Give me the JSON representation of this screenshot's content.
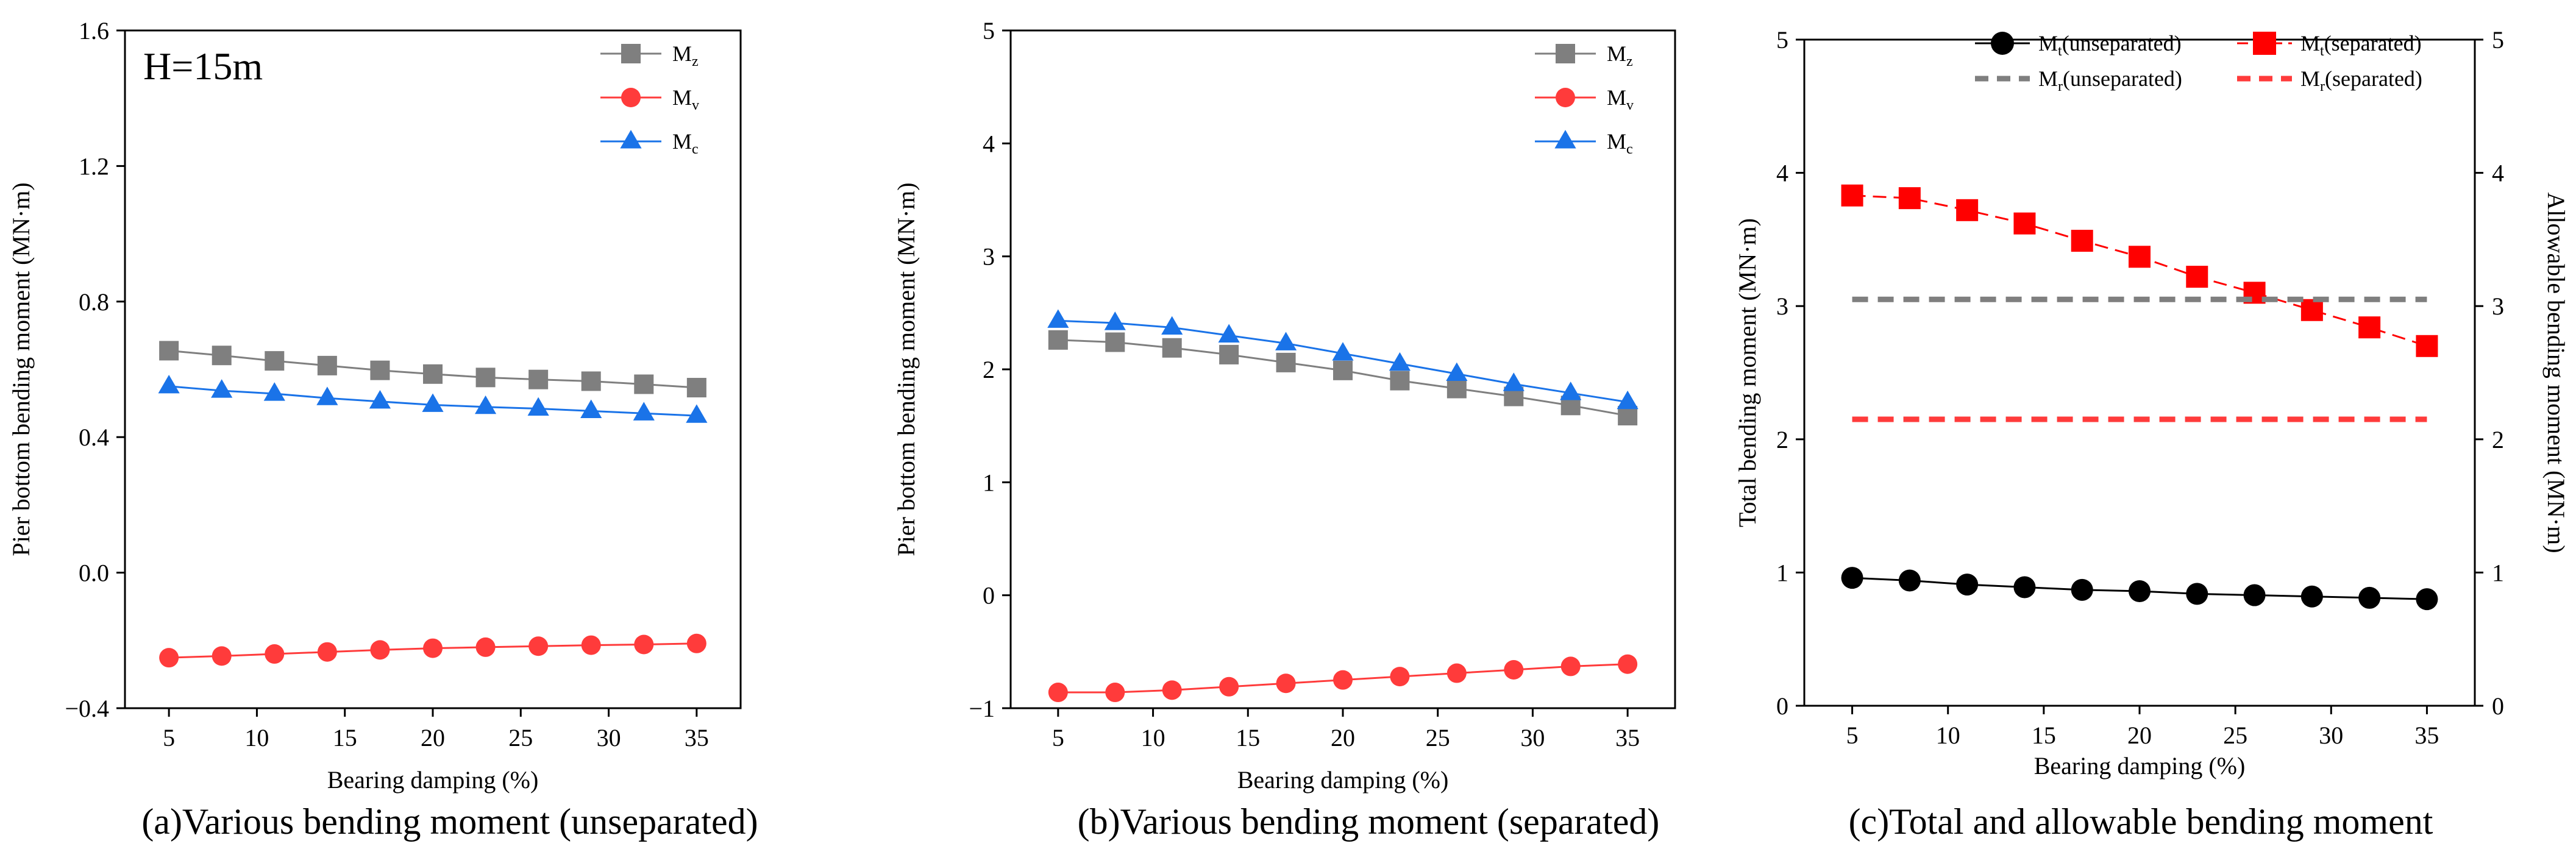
{
  "chart_data": [
    {
      "id": "a",
      "type": "line",
      "caption": "(a)Various bending moment (unseparated)",
      "annotation": "H=15m",
      "xlabel": "Bearing damping (%)",
      "ylabel": "Pier bottom bending moment (MN·m)",
      "xlim": [
        2.5,
        37.5
      ],
      "ylim": [
        -0.4,
        1.6
      ],
      "xticks": [
        5,
        10,
        15,
        20,
        25,
        30,
        35
      ],
      "yticks": [
        -0.4,
        0.0,
        0.4,
        0.8,
        1.2,
        1.6
      ],
      "ytick_labels": [
        "−0.4",
        "0.0",
        "0.4",
        "0.8",
        "1.2",
        "1.6"
      ],
      "x": [
        5,
        8,
        11,
        14,
        17,
        20,
        23,
        26,
        29,
        32,
        35
      ],
      "legend_position": "top-right",
      "series": [
        {
          "name": "M",
          "sub": "z",
          "color": "#7f7f7f",
          "marker": "square",
          "values": [
            0.655,
            0.641,
            0.625,
            0.611,
            0.597,
            0.586,
            0.576,
            0.57,
            0.565,
            0.556,
            0.546
          ]
        },
        {
          "name": "M",
          "sub": "v",
          "color": "#ff3b3b",
          "marker": "circle",
          "values": [
            -0.251,
            -0.246,
            -0.24,
            -0.234,
            -0.228,
            -0.223,
            -0.22,
            -0.217,
            -0.214,
            -0.212,
            -0.209
          ]
        },
        {
          "name": "M",
          "sub": "c",
          "color": "#1a73e8",
          "marker": "triangle",
          "values": [
            0.55,
            0.537,
            0.528,
            0.515,
            0.505,
            0.495,
            0.489,
            0.484,
            0.477,
            0.47,
            0.463
          ]
        }
      ]
    },
    {
      "id": "b",
      "type": "line",
      "caption": "(b)Various bending moment (separated)",
      "xlabel": "Bearing damping (%)",
      "ylabel": "Pier bottom bending moment (MN·m)",
      "xlim": [
        2.5,
        37.5
      ],
      "ylim": [
        -1,
        5
      ],
      "xticks": [
        5,
        10,
        15,
        20,
        25,
        30,
        35
      ],
      "yticks": [
        -1,
        0,
        1,
        2,
        3,
        4,
        5
      ],
      "ytick_labels": [
        "−1",
        "0",
        "1",
        "2",
        "3",
        "4",
        "5"
      ],
      "x": [
        5,
        8,
        11,
        14,
        17,
        20,
        23,
        26,
        29,
        32,
        35
      ],
      "legend_position": "top-right",
      "series": [
        {
          "name": "M",
          "sub": "z",
          "color": "#7f7f7f",
          "marker": "square",
          "values": [
            2.26,
            2.24,
            2.19,
            2.13,
            2.06,
            1.99,
            1.9,
            1.83,
            1.76,
            1.68,
            1.59
          ]
        },
        {
          "name": "M",
          "sub": "v",
          "color": "#ff3b3b",
          "marker": "circle",
          "values": [
            -0.86,
            -0.86,
            -0.84,
            -0.81,
            -0.78,
            -0.75,
            -0.72,
            -0.69,
            -0.66,
            -0.63,
            -0.61
          ]
        },
        {
          "name": "M",
          "sub": "c",
          "color": "#1a73e8",
          "marker": "triangle",
          "values": [
            2.43,
            2.41,
            2.37,
            2.3,
            2.23,
            2.14,
            2.05,
            1.96,
            1.87,
            1.79,
            1.71
          ]
        }
      ]
    },
    {
      "id": "c",
      "type": "line",
      "caption": "(c)Total and allowable bending moment",
      "xlabel": "Bearing damping (%)",
      "ylabel": "Total bending moment (MN·m)",
      "ylabel_right": "Allowable bending moment (MN·m)",
      "xlim": [
        2.5,
        37.5
      ],
      "ylim": [
        0,
        5
      ],
      "xticks": [
        5,
        10,
        15,
        20,
        25,
        30,
        35
      ],
      "yticks": [
        0,
        1,
        2,
        3,
        4,
        5
      ],
      "ytick_labels": [
        "0",
        "1",
        "2",
        "3",
        "4",
        "5"
      ],
      "x": [
        5,
        8,
        11,
        14,
        17,
        20,
        23,
        26,
        29,
        32,
        35
      ],
      "legend_position": "top",
      "series": [
        {
          "name": "M",
          "sub": "t",
          "suffix": "(unseparated)",
          "color": "#000000",
          "marker": "circle",
          "style": "solid",
          "values": [
            0.96,
            0.94,
            0.91,
            0.89,
            0.87,
            0.86,
            0.84,
            0.83,
            0.82,
            0.81,
            0.8
          ]
        },
        {
          "name": "M",
          "sub": "t",
          "suffix": "(separated)",
          "color": "#ff0000",
          "marker": "square",
          "style": "dash",
          "values": [
            3.83,
            3.81,
            3.72,
            3.62,
            3.49,
            3.37,
            3.22,
            3.1,
            2.97,
            2.84,
            2.7
          ]
        },
        {
          "name": "M",
          "sub": "r",
          "suffix": "(unseparated)",
          "color": "#7f7f7f",
          "marker": "none",
          "style": "dash",
          "values": [
            3.05,
            3.05,
            3.05,
            3.05,
            3.05,
            3.05,
            3.05,
            3.05,
            3.05,
            3.05,
            3.05
          ]
        },
        {
          "name": "M",
          "sub": "r",
          "suffix": "(separated)",
          "color": "#ff3b3b",
          "marker": "none",
          "style": "dash",
          "values": [
            2.15,
            2.15,
            2.15,
            2.15,
            2.15,
            2.15,
            2.15,
            2.15,
            2.15,
            2.15,
            2.15
          ]
        }
      ]
    }
  ]
}
